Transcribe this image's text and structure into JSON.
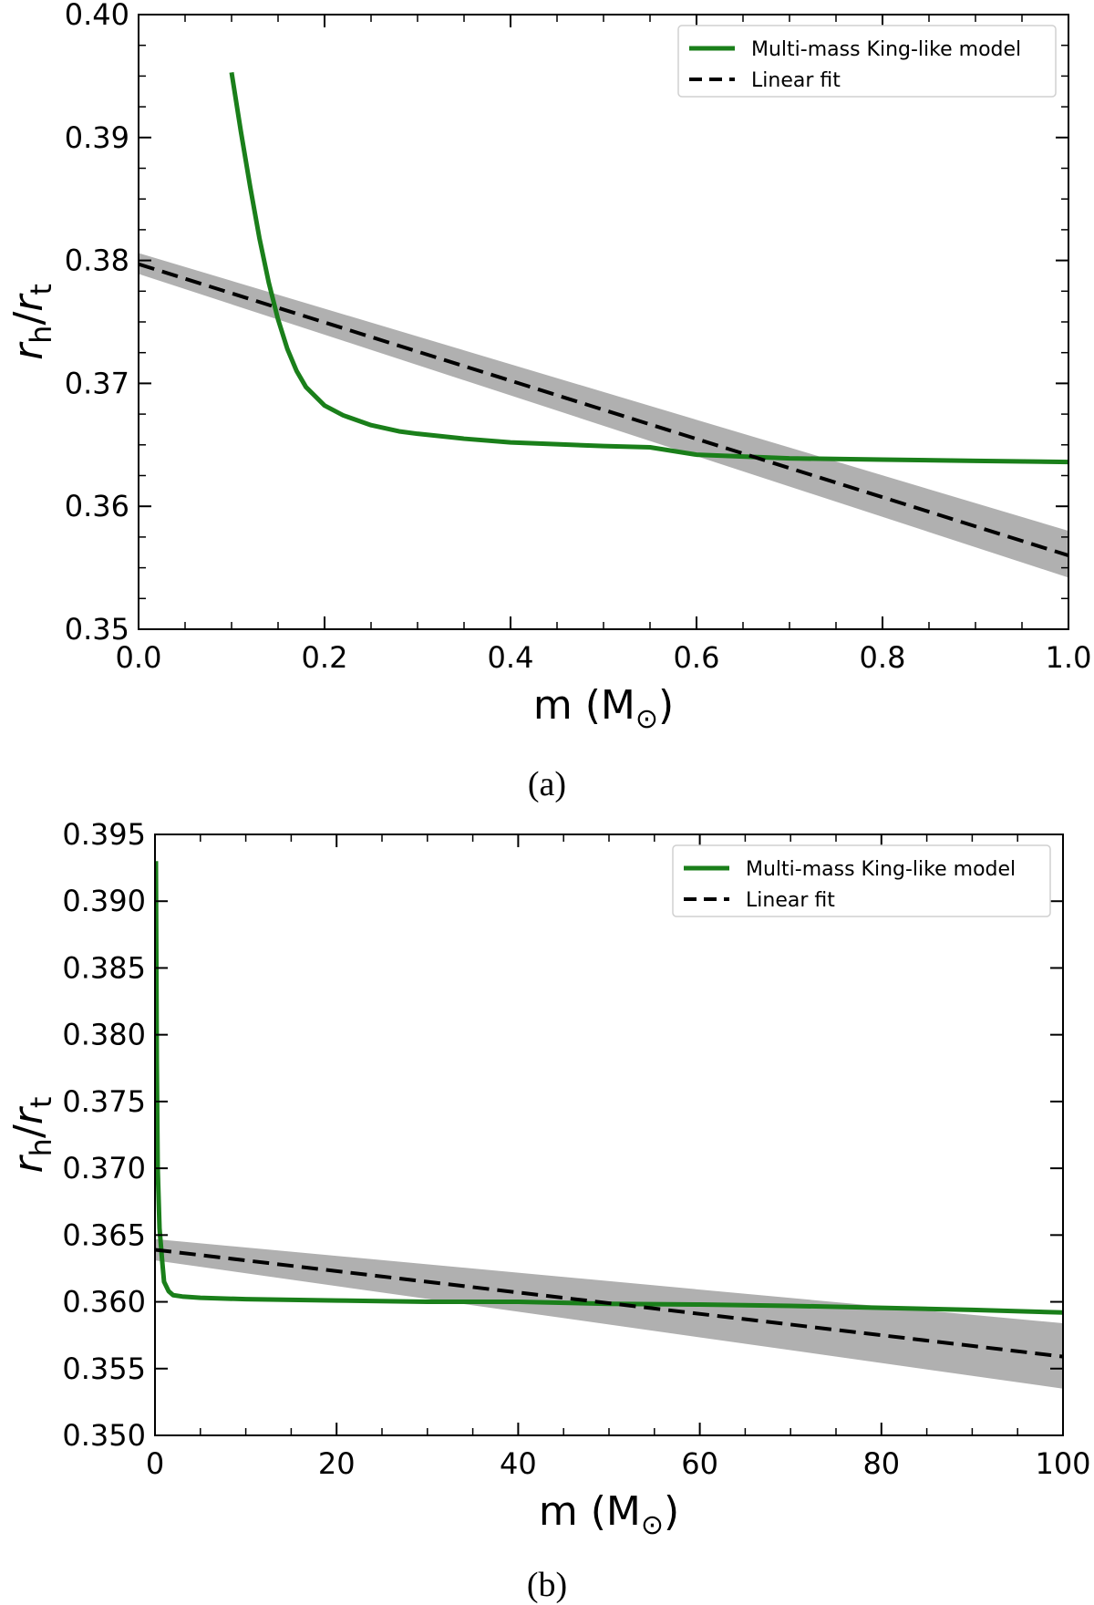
{
  "chart_data": [
    {
      "type": "line",
      "panel_label": "(a)",
      "xlabel": "m (M⊙)",
      "ylabel": "r_h/r_t",
      "xlim": [
        0.0,
        1.0
      ],
      "ylim": [
        0.35,
        0.4
      ],
      "xticks": [
        0.0,
        0.2,
        0.4,
        0.6,
        0.8,
        1.0
      ],
      "xtick_labels": [
        "0.0",
        "0.2",
        "0.4",
        "0.6",
        "0.8",
        "1.0"
      ],
      "yticks": [
        0.35,
        0.36,
        0.37,
        0.38,
        0.39,
        0.4
      ],
      "ytick_labels": [
        "0.35",
        "0.36",
        "0.37",
        "0.38",
        "0.39",
        "0.40"
      ],
      "grid": false,
      "legend_position": "top-right",
      "series": [
        {
          "name": "Multi-mass King-like model",
          "color": "#1a7f1a",
          "style": "solid",
          "x": [
            0.1,
            0.11,
            0.12,
            0.13,
            0.14,
            0.15,
            0.16,
            0.17,
            0.18,
            0.2,
            0.22,
            0.25,
            0.28,
            0.3,
            0.35,
            0.4,
            0.45,
            0.5,
            0.55,
            0.6,
            0.7,
            0.8,
            0.9,
            1.0
          ],
          "y": [
            0.3953,
            0.3905,
            0.386,
            0.3818,
            0.3782,
            0.3752,
            0.3728,
            0.371,
            0.3697,
            0.3682,
            0.3674,
            0.3666,
            0.3661,
            0.3659,
            0.3655,
            0.3652,
            0.36505,
            0.3649,
            0.3648,
            0.3642,
            0.3639,
            0.3638,
            0.3637,
            0.3636
          ]
        },
        {
          "name": "Linear fit",
          "color": "#000000",
          "style": "dashed",
          "x": [
            0.0,
            1.0
          ],
          "y": [
            0.3797,
            0.356
          ]
        }
      ],
      "band": {
        "color": "#b0b0b0",
        "x": [
          0.0,
          1.0
        ],
        "lower": [
          0.3789,
          0.3542
        ],
        "upper": [
          0.3806,
          0.358
        ]
      }
    },
    {
      "type": "line",
      "panel_label": "(b)",
      "xlabel": "m (M⊙)",
      "ylabel": "r_h/r_t",
      "xlim": [
        0,
        100
      ],
      "ylim": [
        0.35,
        0.395
      ],
      "xticks": [
        0,
        20,
        40,
        60,
        80,
        100
      ],
      "xtick_labels": [
        "0",
        "20",
        "40",
        "60",
        "80",
        "100"
      ],
      "yticks": [
        0.35,
        0.355,
        0.36,
        0.365,
        0.37,
        0.375,
        0.38,
        0.385,
        0.39,
        0.395
      ],
      "ytick_labels": [
        "0.350",
        "0.355",
        "0.360",
        "0.365",
        "0.370",
        "0.375",
        "0.380",
        "0.385",
        "0.390",
        "0.395"
      ],
      "grid": false,
      "legend_position": "top-right",
      "series": [
        {
          "name": "Multi-mass King-like model",
          "color": "#1a7f1a",
          "style": "solid",
          "x": [
            0.1,
            0.2,
            0.3,
            0.5,
            0.8,
            1.0,
            1.5,
            2.0,
            3.0,
            5.0,
            10,
            20,
            30,
            40,
            50,
            60,
            70,
            80,
            90,
            100
          ],
          "y": [
            0.393,
            0.378,
            0.37,
            0.3655,
            0.363,
            0.3615,
            0.3608,
            0.3605,
            0.3604,
            0.3603,
            0.3602,
            0.3601,
            0.36,
            0.36,
            0.35985,
            0.3598,
            0.3597,
            0.35955,
            0.3594,
            0.3592
          ]
        },
        {
          "name": "Linear fit",
          "color": "#000000",
          "style": "dashed",
          "x": [
            0,
            100
          ],
          "y": [
            0.3639,
            0.3559
          ]
        }
      ],
      "band": {
        "color": "#b0b0b0",
        "x": [
          0,
          100
        ],
        "lower": [
          0.3631,
          0.3535
        ],
        "upper": [
          0.3647,
          0.3584
        ]
      }
    }
  ]
}
